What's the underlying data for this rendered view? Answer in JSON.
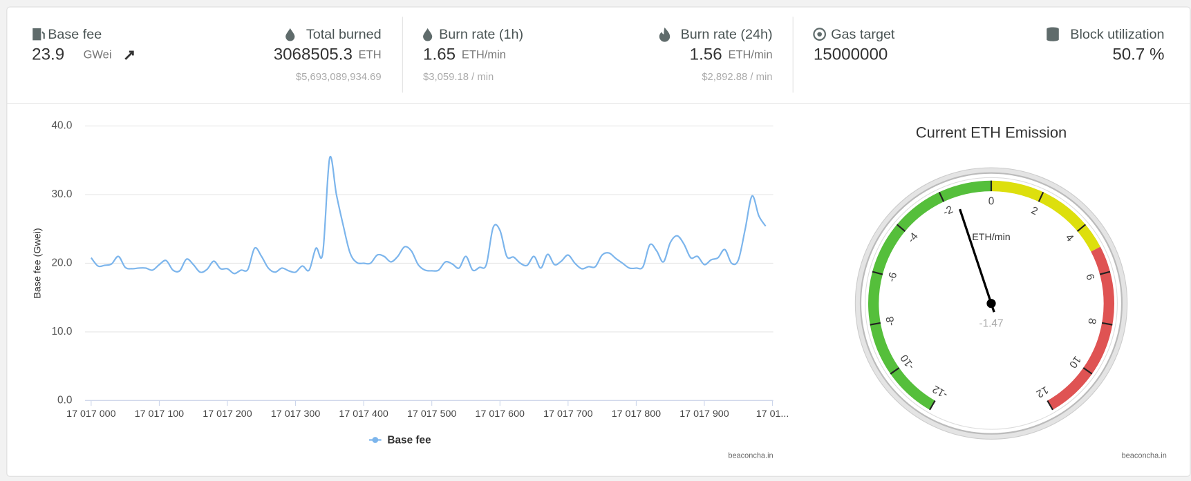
{
  "stats": [
    {
      "label": "Base fee",
      "value": 23.9,
      "unit": "GWei"
    },
    {
      "label": "Total burned",
      "value": 3068505.3,
      "unit": "ETH",
      "sub": "$5,693,089,934.69"
    },
    {
      "label": "Burn rate (1h)",
      "value": 1.65,
      "unit": "ETH/min",
      "sub": "$3,059.18 / min"
    },
    {
      "label": "Burn rate (24h)",
      "value": 1.56,
      "unit": "ETH/min",
      "sub": "$2,892.88 / min"
    },
    {
      "label": "Gas target",
      "value": 15000000
    },
    {
      "label": "Block utilization",
      "value": "50.7 %"
    }
  ],
  "chart_data": [
    {
      "type": "line",
      "y_label": "Base fee (Gwei)",
      "credit": "beaconcha.in",
      "grid": true,
      "x": [
        17017000,
        17017010,
        17017020,
        17017030,
        17017040,
        17017050,
        17017060,
        17017070,
        17017080,
        17017090,
        17017100,
        17017110,
        17017120,
        17017130,
        17017140,
        17017150,
        17017160,
        17017170,
        17017180,
        17017190,
        17017200,
        17017210,
        17017220,
        17017230,
        17017240,
        17017250,
        17017260,
        17017270,
        17017280,
        17017290,
        17017300,
        17017310,
        17017320,
        17017330,
        17017340,
        17017350,
        17017360,
        17017370,
        17017380,
        17017390,
        17017400,
        17017410,
        17017420,
        17017430,
        17017440,
        17017450,
        17017460,
        17017470,
        17017480,
        17017490,
        17017500,
        17017510,
        17017520,
        17017530,
        17017540,
        17017550,
        17017560,
        17017570,
        17017580,
        17017590,
        17017600,
        17017610,
        17017620,
        17017630,
        17017640,
        17017650,
        17017660,
        17017670,
        17017680,
        17017690,
        17017700,
        17017710,
        17017720,
        17017730,
        17017740,
        17017750,
        17017760,
        17017770,
        17017780,
        17017790,
        17017800,
        17017810,
        17017820,
        17017830,
        17017840,
        17017850,
        17017860,
        17017870,
        17017880,
        17017890,
        17017900,
        17017910,
        17017920,
        17017930,
        17017940,
        17017950,
        17017960,
        17017970,
        17017980,
        17017990
      ],
      "series": [
        {
          "name": "Base fee",
          "color": "#7cb5ec",
          "values": [
            20.8,
            19.6,
            19.7,
            19.9,
            21.0,
            19.4,
            19.2,
            19.3,
            19.3,
            19.0,
            19.8,
            20.4,
            19.0,
            18.9,
            20.6,
            19.8,
            18.7,
            19.1,
            20.3,
            19.2,
            19.2,
            18.5,
            19.0,
            19.1,
            22.2,
            21.0,
            19.3,
            18.7,
            19.3,
            18.9,
            18.7,
            19.6,
            19.0,
            22.2,
            21.5,
            35.3,
            30.0,
            25.5,
            21.5,
            20.1,
            20.0,
            20.0,
            21.2,
            21.0,
            20.2,
            21.0,
            22.4,
            21.8,
            19.8,
            19.0,
            18.9,
            19.0,
            20.2,
            19.9,
            19.3,
            21.0,
            19.0,
            19.4,
            19.8,
            25.2,
            24.8,
            21.0,
            20.9,
            20.0,
            19.7,
            21.0,
            19.3,
            21.3,
            19.8,
            20.3,
            21.2,
            20.0,
            19.2,
            19.5,
            19.5,
            21.2,
            21.5,
            20.7,
            20.0,
            19.3,
            19.3,
            19.5,
            22.7,
            21.8,
            20.2,
            23.0,
            24.0,
            22.8,
            20.8,
            21.0,
            19.8,
            20.5,
            20.8,
            22.0,
            20.0,
            20.5,
            25.0,
            29.8,
            26.9,
            25.4
          ]
        }
      ],
      "xlim": [
        17017000,
        17018000
      ],
      "xticks": [
        {
          "value": 17017000,
          "label": "17 017 000"
        },
        {
          "value": 17017100,
          "label": "17 017 100"
        },
        {
          "value": 17017200,
          "label": "17 017 200"
        },
        {
          "value": 17017300,
          "label": "17 017 300"
        },
        {
          "value": 17017400,
          "label": "17 017 400"
        },
        {
          "value": 17017500,
          "label": "17 017 500"
        },
        {
          "value": 17017600,
          "label": "17 017 600"
        },
        {
          "value": 17017700,
          "label": "17 017 700"
        },
        {
          "value": 17017800,
          "label": "17 017 800"
        },
        {
          "value": 17017900,
          "label": "17 017 900"
        },
        {
          "value": 17018000,
          "label": "17 01..."
        }
      ],
      "ylim": [
        0,
        40
      ],
      "yticks": [
        {
          "value": 0,
          "label": "0.0"
        },
        {
          "value": 10,
          "label": "10.0"
        },
        {
          "value": 20,
          "label": "20.0"
        },
        {
          "value": 30,
          "label": "30.0"
        },
        {
          "value": 40,
          "label": "40.0"
        }
      ]
    },
    {
      "type": "gauge",
      "title": "Current ETH Emission",
      "unit": "ETH/min",
      "credit": "beaconcha.in",
      "value": -1.47,
      "ylim": [
        -12,
        12
      ],
      "yticks": [
        -12,
        -10,
        -8,
        -6,
        -4,
        -2,
        0,
        2,
        4,
        6,
        8,
        10,
        12
      ],
      "bands": [
        {
          "from": -12,
          "to": 0,
          "color": "#55bf3b"
        },
        {
          "from": 0,
          "to": 5,
          "color": "#dddf0d"
        },
        {
          "from": 5,
          "to": 12,
          "color": "#df5353"
        }
      ]
    }
  ]
}
